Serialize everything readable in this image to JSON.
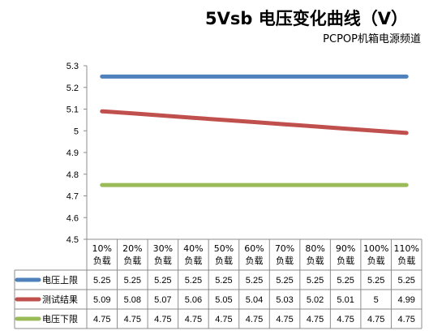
{
  "chart_data": {
    "type": "line",
    "title": "5Vsb 电压变化曲线（V）",
    "subtitle": "PCPOP机箱电源频道",
    "ylim": [
      4.5,
      5.3
    ],
    "y_ticks": [
      "5.3",
      "5.2",
      "5.1",
      "5",
      "4.9",
      "4.8",
      "4.7",
      "4.6",
      "4.5"
    ],
    "categories": [
      [
        "10%",
        "负载"
      ],
      [
        "20%",
        "负载"
      ],
      [
        "30%",
        "负载"
      ],
      [
        "40%",
        "负载"
      ],
      [
        "50%",
        "负载"
      ],
      [
        "60%",
        "负载"
      ],
      [
        "70%",
        "负载"
      ],
      [
        "80%",
        "负载"
      ],
      [
        "90%",
        "负载"
      ],
      [
        "100%",
        "负载"
      ],
      [
        "110%",
        "负载"
      ]
    ],
    "series": [
      {
        "name": "电压上限",
        "color": "#4F81BD",
        "values": [
          5.25,
          5.25,
          5.25,
          5.25,
          5.25,
          5.25,
          5.25,
          5.25,
          5.25,
          5.25,
          5.25
        ],
        "labels": [
          "5.25",
          "5.25",
          "5.25",
          "5.25",
          "5.25",
          "5.25",
          "5.25",
          "5.25",
          "5.25",
          "5.25",
          "5.25"
        ]
      },
      {
        "name": "测试结果",
        "color": "#C0504D",
        "values": [
          5.09,
          5.08,
          5.07,
          5.06,
          5.05,
          5.04,
          5.03,
          5.02,
          5.01,
          5,
          4.99
        ],
        "labels": [
          "5.09",
          "5.08",
          "5.07",
          "5.06",
          "5.05",
          "5.04",
          "5.03",
          "5.02",
          "5.01",
          "5",
          "4.99"
        ]
      },
      {
        "name": "电压下限",
        "color": "#9BBB59",
        "values": [
          4.75,
          4.75,
          4.75,
          4.75,
          4.75,
          4.75,
          4.75,
          4.75,
          4.75,
          4.75,
          4.75
        ],
        "labels": [
          "4.75",
          "4.75",
          "4.75",
          "4.75",
          "4.75",
          "4.75",
          "4.75",
          "4.75",
          "4.75",
          "4.75",
          "4.75"
        ]
      }
    ],
    "grid": false,
    "legend": "data-table"
  }
}
